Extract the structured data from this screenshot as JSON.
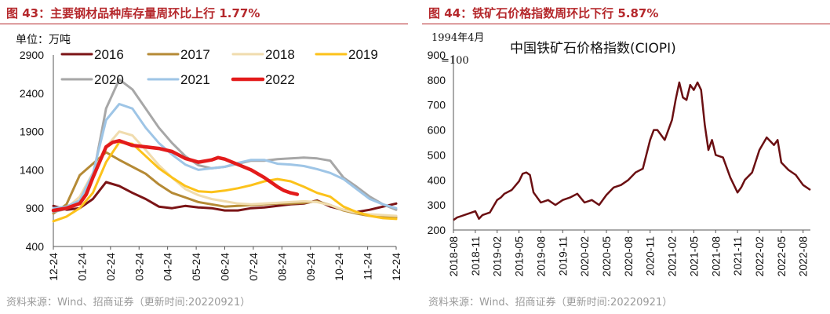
{
  "left": {
    "figure_title": "图 43：主要钢材品种库存量周环比上行 1.77%",
    "source": "资料来源：Wind、招商证券（更新时间:20220921）"
  },
  "right": {
    "figure_title": "图 44：铁矿石价格指数周环比下行 5.87%",
    "source": "资料来源：Wind、招商证券（更新时间:20220921）"
  },
  "chart_data": [
    {
      "type": "line",
      "title": "",
      "unit_label": "单位：万吨",
      "xlabel": "",
      "ylabel": "",
      "ylim": [
        400,
        2900
      ],
      "yticks": [
        400,
        900,
        1400,
        1900,
        2400,
        2900
      ],
      "xlim": [
        0,
        52
      ],
      "categories": [
        "12-24",
        "01-24",
        "02-24",
        "03-24",
        "04-24",
        "05-24",
        "06-24",
        "07-24",
        "08-24",
        "09-24",
        "10-24",
        "11-24",
        "12-24"
      ],
      "category_positions": [
        0,
        4.33,
        8.67,
        13,
        17.33,
        21.67,
        26,
        30.33,
        34.67,
        39,
        43.33,
        47.67,
        52
      ],
      "legend": "top, 3 rows",
      "series": [
        {
          "name": "2016",
          "color": "#7b1416",
          "width": 3,
          "x": [
            0,
            2,
            4,
            6,
            8,
            10,
            12,
            14,
            16,
            18,
            20,
            22,
            24,
            26,
            28,
            30,
            32,
            34,
            36,
            38,
            40,
            42,
            44,
            46,
            48,
            50,
            52
          ],
          "values": [
            930,
            880,
            900,
            1020,
            1240,
            1190,
            1100,
            1020,
            920,
            900,
            930,
            910,
            900,
            870,
            870,
            900,
            910,
            930,
            950,
            960,
            1000,
            920,
            880,
            850,
            880,
            920,
            960
          ]
        },
        {
          "name": "2017",
          "color": "#b58a35",
          "width": 3,
          "x": [
            0,
            2,
            4,
            6,
            8,
            10,
            12,
            14,
            16,
            18,
            20,
            22,
            24,
            26,
            28,
            30,
            32,
            34,
            36,
            38,
            40,
            42,
            44,
            46,
            48,
            50,
            52
          ],
          "values": [
            830,
            950,
            1330,
            1480,
            1630,
            1530,
            1440,
            1350,
            1210,
            1100,
            1040,
            980,
            950,
            920,
            930,
            940,
            950,
            960,
            960,
            970,
            990,
            940,
            870,
            830,
            800,
            790,
            780
          ]
        },
        {
          "name": "2018",
          "color": "#f0dcae",
          "width": 3,
          "x": [
            0,
            2,
            4,
            6,
            8,
            10,
            12,
            14,
            16,
            18,
            20,
            22,
            24,
            26,
            28,
            30,
            32,
            34,
            36,
            38,
            40,
            42,
            44,
            46,
            48,
            50,
            52
          ],
          "values": [
            860,
            900,
            1050,
            1360,
            1700,
            1900,
            1850,
            1660,
            1460,
            1300,
            1150,
            1070,
            1020,
            990,
            960,
            950,
            960,
            970,
            980,
            990,
            980,
            940,
            880,
            840,
            820,
            810,
            800
          ]
        },
        {
          "name": "2019",
          "color": "#fcc21a",
          "width": 3,
          "x": [
            0,
            2,
            4,
            6,
            8,
            10,
            12,
            14,
            16,
            18,
            20,
            22,
            24,
            26,
            28,
            30,
            32,
            34,
            36,
            38,
            40,
            42,
            44,
            46,
            48,
            50,
            52
          ],
          "values": [
            730,
            790,
            900,
            1100,
            1500,
            1760,
            1740,
            1580,
            1420,
            1300,
            1190,
            1120,
            1110,
            1130,
            1160,
            1200,
            1250,
            1280,
            1250,
            1180,
            1100,
            1050,
            920,
            850,
            800,
            770,
            760
          ]
        },
        {
          "name": "2020",
          "color": "#a7a7a7",
          "width": 3,
          "x": [
            0,
            2,
            4,
            6,
            8,
            10,
            12,
            14,
            16,
            18,
            20,
            22,
            24,
            26,
            28,
            30,
            32,
            34,
            36,
            38,
            40,
            42,
            44,
            46,
            48,
            50,
            52
          ],
          "values": [
            850,
            890,
            1000,
            1300,
            2200,
            2580,
            2450,
            2200,
            1950,
            1750,
            1580,
            1460,
            1420,
            1440,
            1480,
            1520,
            1520,
            1540,
            1550,
            1560,
            1550,
            1520,
            1300,
            1180,
            1050,
            950,
            880
          ]
        },
        {
          "name": "2021",
          "color": "#9ec5e6",
          "width": 3,
          "x": [
            0,
            2,
            4,
            6,
            8,
            10,
            12,
            14,
            16,
            18,
            20,
            22,
            24,
            26,
            28,
            30,
            32,
            34,
            36,
            38,
            40,
            42,
            44,
            46,
            48,
            50,
            52
          ],
          "values": [
            900,
            920,
            1000,
            1350,
            2050,
            2260,
            2200,
            1950,
            1750,
            1600,
            1470,
            1400,
            1420,
            1440,
            1490,
            1530,
            1530,
            1480,
            1470,
            1450,
            1410,
            1360,
            1280,
            1150,
            1020,
            950,
            900
          ]
        },
        {
          "name": "2022",
          "color": "#e31b1b",
          "width": 4.5,
          "x": [
            0,
            2,
            4,
            5,
            6,
            8,
            9,
            10,
            12,
            14,
            16,
            18,
            20,
            22,
            24,
            25,
            26,
            28,
            30,
            32,
            34,
            35,
            36,
            37
          ],
          "values": [
            870,
            900,
            960,
            1080,
            1300,
            1700,
            1760,
            1780,
            1720,
            1700,
            1680,
            1640,
            1550,
            1500,
            1530,
            1560,
            1540,
            1470,
            1400,
            1300,
            1180,
            1130,
            1100,
            1080
          ]
        }
      ]
    },
    {
      "type": "line",
      "title": "中国铁矿石价格指数(CIOPI)",
      "axis_note": "1994年4月=100",
      "xlabel": "",
      "ylabel": "",
      "ylim": [
        200,
        900
      ],
      "yticks": [
        200,
        300,
        400,
        500,
        600,
        700,
        800,
        900
      ],
      "xlim": [
        0,
        49
      ],
      "categories": [
        "2018-08",
        "2018-11",
        "2019-02",
        "2019-05",
        "2019-08",
        "2019-11",
        "2020-02",
        "2020-05",
        "2020-08",
        "2020-11",
        "2021-02",
        "2021-05",
        "2021-08",
        "2021-11",
        "2022-02",
        "2022-05",
        "2022-08"
      ],
      "category_positions": [
        0,
        3,
        6,
        9,
        12,
        15,
        18,
        21,
        24,
        27,
        30,
        33,
        36,
        39,
        42,
        45,
        48
      ],
      "legend": "none",
      "series": [
        {
          "name": "中国铁矿石价格指数(CIOPI)",
          "color": "#6b0f12",
          "width": 2.5,
          "x": [
            0,
            0.5,
            1,
            2,
            3,
            3.5,
            4,
            5,
            6,
            6.5,
            7,
            8,
            9,
            9.5,
            10,
            10.5,
            11,
            12,
            13,
            14,
            15,
            16,
            17,
            18,
            19,
            20,
            21,
            22,
            23,
            24,
            25,
            26,
            27,
            27.5,
            28,
            29,
            30,
            30.5,
            31,
            31.5,
            32,
            32.5,
            33,
            33.5,
            34,
            34.5,
            35,
            35.5,
            36,
            37,
            38,
            39,
            39.5,
            40,
            41,
            42,
            43,
            44,
            44.5,
            45,
            46,
            47,
            48,
            49
          ],
          "values": [
            240,
            250,
            255,
            265,
            275,
            245,
            260,
            270,
            320,
            330,
            345,
            360,
            395,
            425,
            430,
            420,
            350,
            310,
            320,
            300,
            320,
            330,
            345,
            310,
            320,
            300,
            340,
            370,
            380,
            400,
            430,
            445,
            560,
            600,
            600,
            560,
            640,
            720,
            790,
            730,
            720,
            780,
            760,
            790,
            760,
            620,
            520,
            560,
            500,
            490,
            410,
            350,
            370,
            400,
            430,
            520,
            570,
            540,
            560,
            470,
            440,
            420,
            380,
            360
          ]
        }
      ]
    }
  ]
}
